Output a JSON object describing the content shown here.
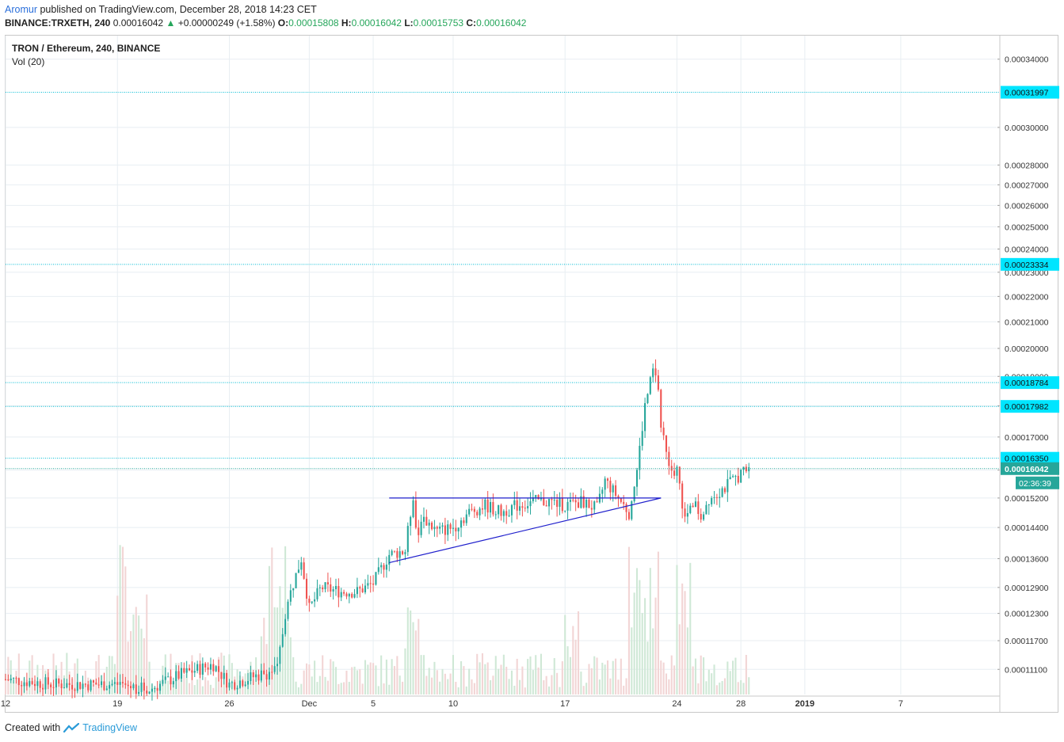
{
  "header": {
    "author": "Aromur",
    "published": "published on TradingView.com, December 28, 2018 14:23 CET",
    "symbol": "BINANCE:TRXETH, 240",
    "last": "0.00016042",
    "change": "+0.00000249 (+1.58%)",
    "o_label": "O:",
    "o": "0.00015808",
    "h_label": "H:",
    "h": "0.00016042",
    "l_label": "L:",
    "l": "0.00015753",
    "c_label": "C:",
    "c": "0.00016042"
  },
  "legend": {
    "title": "TRON / Ethereum, 240, BINANCE",
    "volume": "Vol (20)"
  },
  "footer": {
    "created": "Created with",
    "brand": "TradingView"
  },
  "colors": {
    "up": "#26a69a",
    "down": "#ef5350",
    "grid": "#e8eef2",
    "hline": "#00bcd4",
    "badge": "#00e5ff",
    "pattern": "#1f1fcc",
    "vol_up": "#cfe8d6",
    "vol_down": "#f2d5d5"
  },
  "chart_data": {
    "type": "candlestick",
    "title": "TRON / Ethereum, 240, BINANCE",
    "y_scale": "log",
    "ylim": [
      0.000106,
      0.000355
    ],
    "y_ticks": [
      "0.00034000",
      "0.00030000",
      "0.00028000",
      "0.00027000",
      "0.00026000",
      "0.00025000",
      "0.00024000",
      "0.00023000",
      "0.00022000",
      "0.00021000",
      "0.00020000",
      "0.00019000",
      "0.00018000",
      "0.00017000",
      "0.00016000",
      "0.00015200",
      "0.00014400",
      "0.00013600",
      "0.00012900",
      "0.00012300",
      "0.00011700",
      "0.00011100"
    ],
    "x_ticks": [
      "12",
      "19",
      "26",
      "Dec",
      "5",
      "10",
      "17",
      "24",
      "28",
      "2019",
      "7"
    ],
    "x_tick_dates": [
      "2018-11-12",
      "2018-11-19",
      "2018-11-26",
      "2018-12-01",
      "2018-12-05",
      "2018-12-10",
      "2018-12-17",
      "2018-12-24",
      "2018-12-28",
      "2019-01-01",
      "2019-01-07"
    ],
    "x_range": [
      "2018-11-12",
      "2019-01-13"
    ],
    "horizontal_levels": [
      "0.00031997",
      "0.00023334",
      "0.00018784",
      "0.00017982",
      "0.00016350"
    ],
    "last_price": "0.00016042",
    "countdown": "02:36:39",
    "price_path": [
      [
        "2018-11-12",
        0.000109
      ],
      [
        "2018-11-15",
        0.000108
      ],
      [
        "2018-11-19",
        0.000108
      ],
      [
        "2018-11-21",
        0.000107
      ],
      [
        "2018-11-23",
        0.00011
      ],
      [
        "2018-11-24",
        0.000111
      ],
      [
        "2018-11-25",
        0.000112
      ],
      [
        "2018-11-26",
        0.000108
      ],
      [
        "2018-11-28",
        0.00011
      ],
      [
        "2018-11-29",
        0.000111
      ],
      [
        "2018-11-29T12",
        0.000123
      ],
      [
        "2018-11-30",
        0.00013
      ],
      [
        "2018-11-30T12",
        0.000136
      ],
      [
        "2018-12-01",
        0.000124
      ],
      [
        "2018-12-01T18",
        0.000129
      ],
      [
        "2018-12-03",
        0.000128
      ],
      [
        "2018-12-04",
        0.000128
      ],
      [
        "2018-12-05",
        0.00013
      ],
      [
        "2018-12-06",
        0.000137
      ],
      [
        "2018-12-07",
        0.000138
      ],
      [
        "2018-12-07T12",
        0.000153
      ],
      [
        "2018-12-07T18",
        0.00014
      ],
      [
        "2018-12-08",
        0.000147
      ],
      [
        "2018-12-09",
        0.000143
      ],
      [
        "2018-12-10",
        0.000144
      ],
      [
        "2018-12-11",
        0.000148
      ],
      [
        "2018-12-12",
        0.00015
      ],
      [
        "2018-12-13",
        0.000148
      ],
      [
        "2018-12-14",
        0.00015
      ],
      [
        "2018-12-15",
        0.000151
      ],
      [
        "2018-12-16",
        0.000151
      ],
      [
        "2018-12-17",
        0.00015
      ],
      [
        "2018-12-18",
        0.000151
      ],
      [
        "2018-12-19",
        0.000149
      ],
      [
        "2018-12-19T12",
        0.000157
      ],
      [
        "2018-12-20",
        0.000154
      ],
      [
        "2018-12-21",
        0.000148
      ],
      [
        "2018-12-21T12",
        0.00016
      ],
      [
        "2018-12-22",
        0.00018
      ],
      [
        "2018-12-22T12",
        0.000192
      ],
      [
        "2018-12-22T20",
        0.000186
      ],
      [
        "2018-12-23",
        0.000173
      ],
      [
        "2018-12-23T12",
        0.00016
      ],
      [
        "2018-12-24",
        0.00016
      ],
      [
        "2018-12-24T12",
        0.000146
      ],
      [
        "2018-12-25",
        0.000151
      ],
      [
        "2018-12-25T12",
        0.000147
      ],
      [
        "2018-12-26",
        0.000152
      ],
      [
        "2018-12-27",
        0.000155
      ],
      [
        "2018-12-28",
        0.000159
      ],
      [
        "2018-12-28T12",
        0.00016
      ]
    ],
    "volume_peaks": [
      [
        "2018-11-19",
        "high"
      ],
      [
        "2018-11-20",
        "high"
      ],
      [
        "2018-11-28",
        "high"
      ],
      [
        "2018-11-29",
        "high"
      ],
      [
        "2018-12-07",
        "medium"
      ],
      [
        "2018-12-17",
        "medium"
      ],
      [
        "2018-12-21",
        "high"
      ],
      [
        "2018-12-22",
        "high"
      ],
      [
        "2018-12-24",
        "high"
      ]
    ],
    "triangle": {
      "upper": [
        [
          "2018-12-06",
          0.000152
        ],
        [
          "2018-12-23",
          0.000152
        ]
      ],
      "lower": [
        [
          "2018-12-06",
          0.000135
        ],
        [
          "2018-12-23",
          0.000152
        ]
      ]
    }
  }
}
